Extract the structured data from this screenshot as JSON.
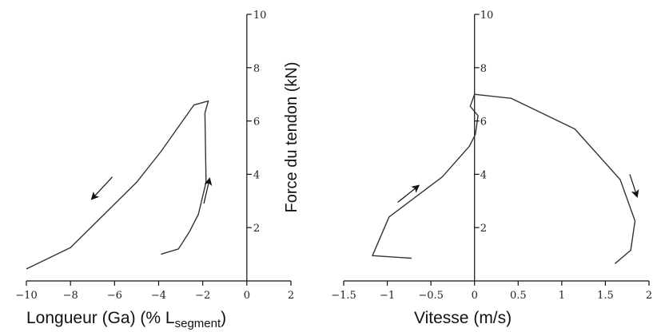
{
  "chart_data": [
    {
      "type": "line",
      "xlabel": "Longueur (Ga) (% L",
      "xlabel_sub": "segment",
      "xlabel_end": ")",
      "ylabel": "Force du tendon (kN)",
      "xlim": [
        -10,
        2
      ],
      "ylim": [
        0,
        10
      ],
      "xticks": [
        -10,
        -8,
        -6,
        -4,
        -2,
        0,
        2
      ],
      "yticks": [
        2,
        4,
        6,
        8,
        10
      ],
      "grid": false,
      "series": [
        {
          "x": [
            -3.9,
            -3.1,
            -2.6,
            -2.2,
            -1.85,
            -1.9,
            -1.75,
            -2.4,
            -3.0,
            -3.9,
            -5.0,
            -8.0,
            -10.0
          ],
          "y": [
            1.0,
            1.2,
            1.85,
            2.5,
            3.7,
            6.3,
            6.75,
            6.6,
            5.9,
            4.85,
            3.7,
            1.25,
            0.45
          ]
        }
      ],
      "arrows": [
        {
          "from": [
            -6.1,
            3.9
          ],
          "to": [
            -7.0,
            3.1
          ]
        },
        {
          "from": [
            -1.95,
            2.9
          ],
          "to": [
            -1.7,
            3.8
          ]
        }
      ]
    },
    {
      "type": "line",
      "xlabel": "Vitesse (m/s)",
      "ylabel": "",
      "xlim": [
        -1.5,
        2
      ],
      "ylim": [
        0,
        10
      ],
      "xticks": [
        -1.5,
        -1,
        -0.5,
        0,
        0.5,
        1,
        1.5,
        2
      ],
      "yticks": [
        2,
        4,
        6,
        8,
        10
      ],
      "grid": false,
      "series": [
        {
          "x": [
            -0.72,
            -1.17,
            -0.98,
            -0.37,
            -0.06,
            0.01,
            0.04,
            -0.05,
            0.0,
            0.42,
            1.15,
            1.67,
            1.84,
            1.79,
            1.61
          ],
          "y": [
            0.85,
            0.95,
            2.4,
            3.9,
            5.05,
            5.5,
            6.2,
            6.55,
            7.0,
            6.85,
            5.7,
            3.8,
            2.25,
            1.15,
            0.65
          ]
        }
      ],
      "arrows": [
        {
          "from": [
            -0.88,
            2.95
          ],
          "to": [
            -0.65,
            3.55
          ]
        },
        {
          "from": [
            1.78,
            4.0
          ],
          "to": [
            1.86,
            3.2
          ]
        }
      ]
    }
  ]
}
